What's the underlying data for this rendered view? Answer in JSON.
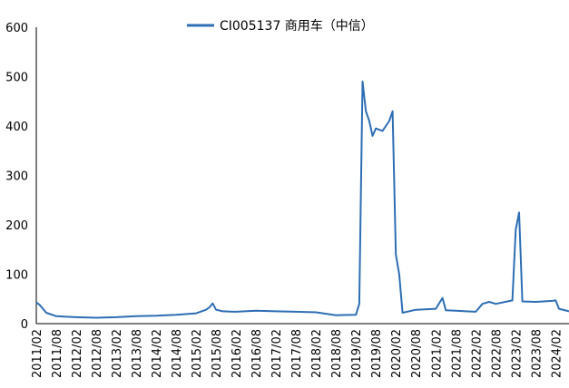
{
  "chart_data": {
    "type": "line",
    "title": "",
    "xlabel": "",
    "ylabel": "",
    "ylim": [
      0,
      600
    ],
    "y_ticks": [
      "0",
      "100",
      "200",
      "300",
      "400",
      "500",
      "600"
    ],
    "x_ticks": [
      "2011/02",
      "2011/08",
      "2012/02",
      "2012/08",
      "2013/02",
      "2013/08",
      "2014/02",
      "2014/08",
      "2015/02",
      "2015/08",
      "2016/02",
      "2016/08",
      "2017/02",
      "2017/08",
      "2018/02",
      "2018/08",
      "2019/02",
      "2019/08",
      "2020/02",
      "2020/08",
      "2021/02",
      "2021/08",
      "2022/02",
      "2022/08",
      "2023/02",
      "2023/08",
      "2024/02"
    ],
    "grid": false,
    "legend_position": "top",
    "color": "#2e6eb4",
    "series": [
      {
        "name": "CI005137 商用车（中信）",
        "points": [
          [
            "2011/02",
            43
          ],
          [
            "2011/03",
            38
          ],
          [
            "2011/05",
            22
          ],
          [
            "2011/08",
            15
          ],
          [
            "2011/11",
            14
          ],
          [
            "2012/02",
            13
          ],
          [
            "2012/08",
            12
          ],
          [
            "2013/02",
            13
          ],
          [
            "2013/08",
            15
          ],
          [
            "2014/02",
            16
          ],
          [
            "2014/08",
            18
          ],
          [
            "2015/02",
            21
          ],
          [
            "2015/05",
            28
          ],
          [
            "2015/06",
            33
          ],
          [
            "2015/07",
            41
          ],
          [
            "2015/08",
            28
          ],
          [
            "2015/10",
            25
          ],
          [
            "2016/02",
            24
          ],
          [
            "2016/08",
            26
          ],
          [
            "2017/02",
            25
          ],
          [
            "2017/08",
            24
          ],
          [
            "2018/02",
            23
          ],
          [
            "2018/08",
            17
          ],
          [
            "2019/02",
            18
          ],
          [
            "2019/03",
            40
          ],
          [
            "2019/04",
            490
          ],
          [
            "2019/05",
            430
          ],
          [
            "2019/06",
            410
          ],
          [
            "2019/07",
            380
          ],
          [
            "2019/08",
            395
          ],
          [
            "2019/10",
            390
          ],
          [
            "2019/12",
            410
          ],
          [
            "2020/01",
            430
          ],
          [
            "2020/02",
            140
          ],
          [
            "2020/03",
            100
          ],
          [
            "2020/04",
            22
          ],
          [
            "2020/08",
            28
          ],
          [
            "2021/02",
            30
          ],
          [
            "2021/04",
            52
          ],
          [
            "2021/05",
            27
          ],
          [
            "2021/08",
            26
          ],
          [
            "2022/02",
            24
          ],
          [
            "2022/04",
            40
          ],
          [
            "2022/06",
            44
          ],
          [
            "2022/08",
            40
          ],
          [
            "2023/01",
            47
          ],
          [
            "2023/02",
            190
          ],
          [
            "2023/03",
            225
          ],
          [
            "2023/04",
            45
          ],
          [
            "2023/08",
            44
          ],
          [
            "2024/01",
            46
          ],
          [
            "2024/02",
            47
          ],
          [
            "2024/03",
            30
          ],
          [
            "2024/06",
            25
          ]
        ]
      }
    ]
  }
}
